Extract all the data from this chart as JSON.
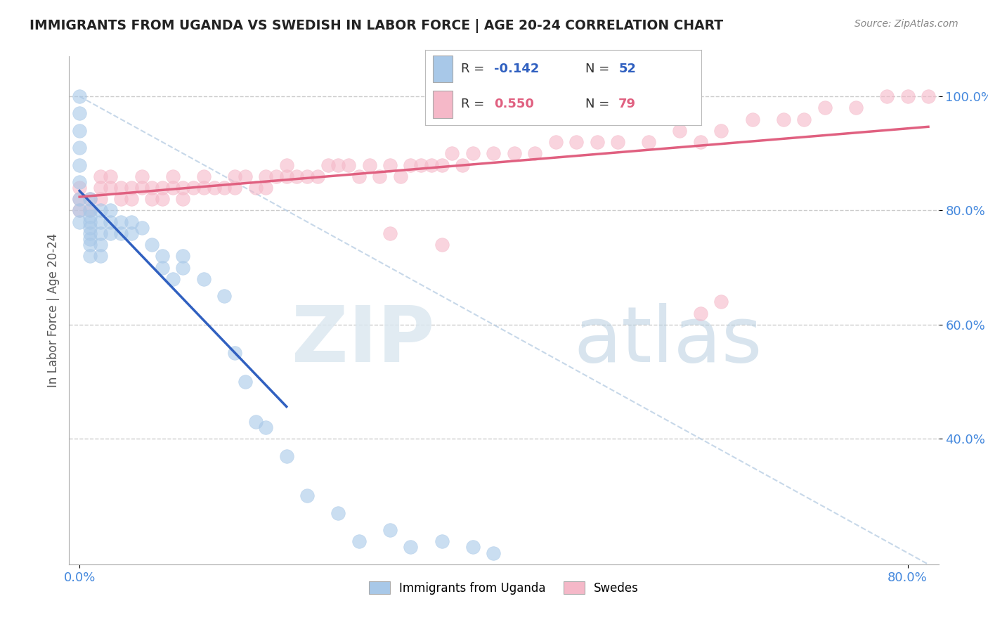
{
  "title": "IMMIGRANTS FROM UGANDA VS SWEDISH IN LABOR FORCE | AGE 20-24 CORRELATION CHART",
  "source": "Source: ZipAtlas.com",
  "ylabel": "In Labor Force | Age 20-24",
  "xlim": [
    -0.01,
    0.83
  ],
  "ylim": [
    0.18,
    1.07
  ],
  "ytick_positions": [
    0.4,
    0.6,
    0.8,
    1.0
  ],
  "ytick_labels": [
    "40.0%",
    "60.0%",
    "80.0%",
    "100.0%"
  ],
  "xtick_positions": [
    0.0,
    0.8
  ],
  "xtick_labels": [
    "0.0%",
    "80.0%"
  ],
  "legend_entries": [
    "Immigrants from Uganda",
    "Swedes"
  ],
  "uganda_R": -0.142,
  "uganda_N": 52,
  "swedes_R": 0.55,
  "swedes_N": 79,
  "uganda_color": "#a8c8e8",
  "swedes_color": "#f5b8c8",
  "uganda_line_color": "#3060c0",
  "swedes_line_color": "#e06080",
  "background_color": "#ffffff",
  "grid_color": "#cccccc",
  "uganda_x": [
    0.0,
    0.0,
    0.0,
    0.0,
    0.0,
    0.0,
    0.0,
    0.0,
    0.0,
    0.01,
    0.01,
    0.01,
    0.01,
    0.01,
    0.01,
    0.01,
    0.01,
    0.01,
    0.02,
    0.02,
    0.02,
    0.02,
    0.02,
    0.03,
    0.03,
    0.03,
    0.04,
    0.04,
    0.05,
    0.05,
    0.06,
    0.07,
    0.08,
    0.08,
    0.09,
    0.1,
    0.1,
    0.12,
    0.14,
    0.15,
    0.16,
    0.17,
    0.18,
    0.2,
    0.22,
    0.25,
    0.27,
    0.3,
    0.32,
    0.35,
    0.38,
    0.4
  ],
  "uganda_y": [
    1.0,
    0.97,
    0.94,
    0.91,
    0.88,
    0.85,
    0.82,
    0.8,
    0.78,
    0.82,
    0.8,
    0.79,
    0.78,
    0.77,
    0.76,
    0.75,
    0.74,
    0.72,
    0.8,
    0.78,
    0.76,
    0.74,
    0.72,
    0.8,
    0.78,
    0.76,
    0.78,
    0.76,
    0.78,
    0.76,
    0.77,
    0.74,
    0.72,
    0.7,
    0.68,
    0.72,
    0.7,
    0.68,
    0.65,
    0.55,
    0.5,
    0.43,
    0.42,
    0.37,
    0.3,
    0.27,
    0.22,
    0.24,
    0.21,
    0.22,
    0.21,
    0.2
  ],
  "swedes_x": [
    0.0,
    0.0,
    0.0,
    0.01,
    0.01,
    0.02,
    0.02,
    0.02,
    0.03,
    0.03,
    0.04,
    0.04,
    0.05,
    0.05,
    0.06,
    0.06,
    0.07,
    0.07,
    0.08,
    0.08,
    0.09,
    0.09,
    0.1,
    0.1,
    0.11,
    0.12,
    0.12,
    0.13,
    0.14,
    0.15,
    0.15,
    0.16,
    0.17,
    0.18,
    0.18,
    0.19,
    0.2,
    0.2,
    0.21,
    0.22,
    0.23,
    0.24,
    0.25,
    0.26,
    0.27,
    0.28,
    0.29,
    0.3,
    0.31,
    0.32,
    0.33,
    0.34,
    0.35,
    0.36,
    0.37,
    0.38,
    0.4,
    0.42,
    0.44,
    0.46,
    0.48,
    0.5,
    0.52,
    0.55,
    0.58,
    0.6,
    0.62,
    0.65,
    0.68,
    0.7,
    0.72,
    0.75,
    0.78,
    0.8,
    0.82,
    0.6,
    0.62,
    0.35,
    0.3
  ],
  "swedes_y": [
    0.84,
    0.82,
    0.8,
    0.82,
    0.8,
    0.86,
    0.84,
    0.82,
    0.86,
    0.84,
    0.84,
    0.82,
    0.84,
    0.82,
    0.86,
    0.84,
    0.84,
    0.82,
    0.84,
    0.82,
    0.86,
    0.84,
    0.84,
    0.82,
    0.84,
    0.86,
    0.84,
    0.84,
    0.84,
    0.86,
    0.84,
    0.86,
    0.84,
    0.86,
    0.84,
    0.86,
    0.88,
    0.86,
    0.86,
    0.86,
    0.86,
    0.88,
    0.88,
    0.88,
    0.86,
    0.88,
    0.86,
    0.88,
    0.86,
    0.88,
    0.88,
    0.88,
    0.88,
    0.9,
    0.88,
    0.9,
    0.9,
    0.9,
    0.9,
    0.92,
    0.92,
    0.92,
    0.92,
    0.92,
    0.94,
    0.92,
    0.94,
    0.96,
    0.96,
    0.96,
    0.98,
    0.98,
    1.0,
    1.0,
    1.0,
    0.62,
    0.64,
    0.74,
    0.76
  ]
}
